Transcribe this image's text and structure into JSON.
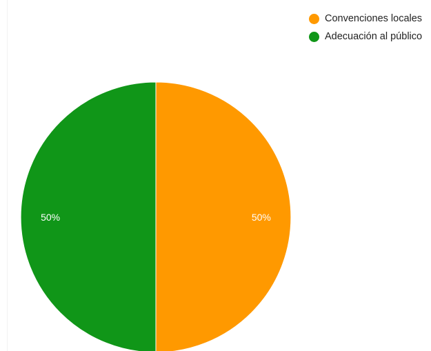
{
  "chart_data": {
    "type": "pie",
    "categories": [
      "Convenciones locales",
      "Adecuación al público"
    ],
    "values": [
      50,
      50
    ],
    "data_labels": [
      "50%",
      "50%"
    ],
    "colors": [
      "#ff9900",
      "#109618"
    ],
    "legend_position": "top-right",
    "title": ""
  },
  "legend": {
    "items": [
      {
        "label": "Convenciones locales",
        "color": "#ff9900"
      },
      {
        "label": "Adecuación al público",
        "color": "#109618"
      }
    ]
  }
}
